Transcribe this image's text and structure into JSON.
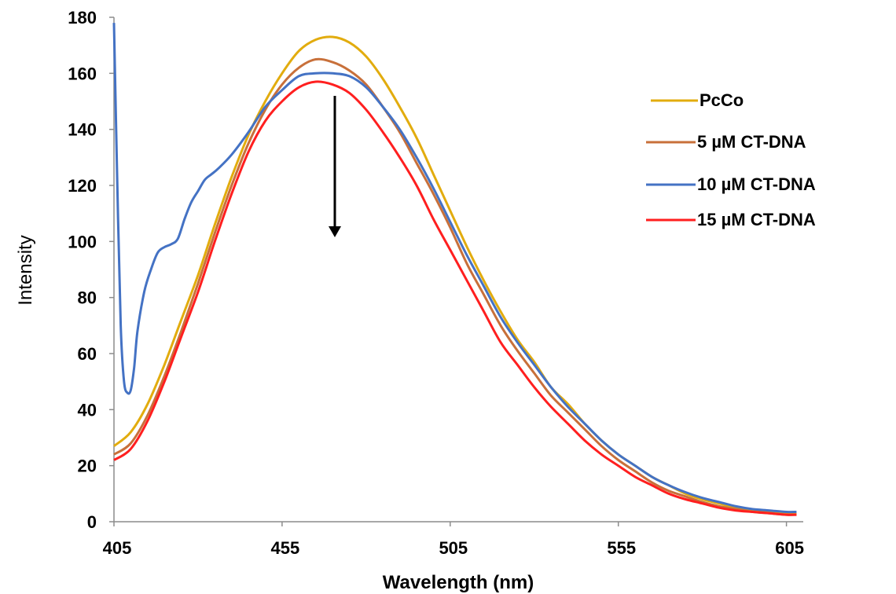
{
  "chart_data": {
    "type": "line",
    "xlabel": "Wavelength (nm)",
    "ylabel": "Intensity",
    "xlim": [
      405,
      610
    ],
    "ylim": [
      0,
      180
    ],
    "xticks": [
      405,
      455,
      505,
      555,
      605
    ],
    "yticks": [
      0,
      20,
      40,
      60,
      80,
      100,
      120,
      140,
      160,
      180
    ],
    "grid": false,
    "legend_position": "right",
    "annotation": "downward arrow at ~466 nm indicating decreasing intensity",
    "series": [
      {
        "name": "PcCo",
        "color": "#E2AC0E",
        "points": [
          [
            405,
            27
          ],
          [
            410,
            32
          ],
          [
            415,
            42
          ],
          [
            420,
            56
          ],
          [
            425,
            72
          ],
          [
            430,
            88
          ],
          [
            435,
            106
          ],
          [
            440,
            123
          ],
          [
            445,
            138
          ],
          [
            450,
            150
          ],
          [
            455,
            160
          ],
          [
            460,
            168
          ],
          [
            465,
            172
          ],
          [
            470,
            173
          ],
          [
            475,
            171
          ],
          [
            480,
            166
          ],
          [
            485,
            158
          ],
          [
            490,
            148
          ],
          [
            495,
            137
          ],
          [
            500,
            124
          ],
          [
            505,
            111
          ],
          [
            510,
            98
          ],
          [
            515,
            86
          ],
          [
            520,
            75
          ],
          [
            525,
            65
          ],
          [
            530,
            57
          ],
          [
            535,
            48
          ],
          [
            540,
            42
          ],
          [
            545,
            35
          ],
          [
            550,
            29
          ],
          [
            555,
            24
          ],
          [
            560,
            20
          ],
          [
            565,
            16
          ],
          [
            570,
            13
          ],
          [
            575,
            10
          ],
          [
            580,
            8
          ],
          [
            585,
            6.5
          ],
          [
            590,
            5
          ],
          [
            595,
            4
          ],
          [
            600,
            3.5
          ],
          [
            605,
            3
          ],
          [
            608,
            3
          ]
        ]
      },
      {
        "name": "5 µM CT-DNA",
        "color": "#C8703A",
        "points": [
          [
            405,
            24
          ],
          [
            410,
            28
          ],
          [
            415,
            38
          ],
          [
            420,
            52
          ],
          [
            425,
            68
          ],
          [
            430,
            85
          ],
          [
            435,
            103
          ],
          [
            440,
            120
          ],
          [
            445,
            135
          ],
          [
            450,
            147
          ],
          [
            455,
            156
          ],
          [
            460,
            162
          ],
          [
            465,
            165
          ],
          [
            470,
            164
          ],
          [
            475,
            161
          ],
          [
            480,
            156
          ],
          [
            485,
            148
          ],
          [
            490,
            139
          ],
          [
            495,
            128
          ],
          [
            500,
            117
          ],
          [
            505,
            105
          ],
          [
            510,
            92
          ],
          [
            515,
            81
          ],
          [
            520,
            70
          ],
          [
            525,
            61
          ],
          [
            530,
            53
          ],
          [
            535,
            45
          ],
          [
            540,
            39
          ],
          [
            545,
            33
          ],
          [
            550,
            27
          ],
          [
            555,
            22
          ],
          [
            560,
            18
          ],
          [
            565,
            14
          ],
          [
            570,
            11
          ],
          [
            575,
            9
          ],
          [
            580,
            7
          ],
          [
            585,
            5.5
          ],
          [
            590,
            4.5
          ],
          [
            595,
            3.5
          ],
          [
            600,
            3
          ],
          [
            605,
            2.5
          ],
          [
            608,
            2.5
          ]
        ]
      },
      {
        "name": "10 µM CT-DNA",
        "color": "#4472C4",
        "points": [
          [
            405,
            178
          ],
          [
            406,
            120
          ],
          [
            407,
            70
          ],
          [
            408,
            50
          ],
          [
            409,
            46
          ],
          [
            410,
            47
          ],
          [
            411,
            55
          ],
          [
            412,
            68
          ],
          [
            414,
            82
          ],
          [
            416,
            90
          ],
          [
            418,
            96
          ],
          [
            420,
            98
          ],
          [
            422,
            99
          ],
          [
            424,
            101
          ],
          [
            426,
            108
          ],
          [
            428,
            114
          ],
          [
            430,
            118
          ],
          [
            432,
            122
          ],
          [
            434,
            124
          ],
          [
            436,
            126
          ],
          [
            440,
            131
          ],
          [
            445,
            139
          ],
          [
            450,
            148
          ],
          [
            455,
            154
          ],
          [
            460,
            159
          ],
          [
            465,
            160
          ],
          [
            470,
            160
          ],
          [
            475,
            159
          ],
          [
            480,
            155
          ],
          [
            485,
            148
          ],
          [
            490,
            140
          ],
          [
            495,
            130
          ],
          [
            500,
            119
          ],
          [
            505,
            107
          ],
          [
            510,
            95
          ],
          [
            515,
            84
          ],
          [
            520,
            73
          ],
          [
            525,
            64
          ],
          [
            530,
            56
          ],
          [
            535,
            48
          ],
          [
            540,
            41
          ],
          [
            545,
            35
          ],
          [
            550,
            29
          ],
          [
            555,
            24
          ],
          [
            560,
            20
          ],
          [
            565,
            16
          ],
          [
            570,
            13
          ],
          [
            575,
            10.5
          ],
          [
            580,
            8.5
          ],
          [
            585,
            7
          ],
          [
            590,
            5.5
          ],
          [
            595,
            4.5
          ],
          [
            600,
            4
          ],
          [
            605,
            3.5
          ],
          [
            608,
            3.5
          ]
        ]
      },
      {
        "name": "15 µM CT-DNA",
        "color": "#FF1F1F",
        "points": [
          [
            405,
            22
          ],
          [
            410,
            26
          ],
          [
            415,
            36
          ],
          [
            420,
            50
          ],
          [
            425,
            66
          ],
          [
            430,
            82
          ],
          [
            435,
            100
          ],
          [
            440,
            117
          ],
          [
            445,
            132
          ],
          [
            450,
            143
          ],
          [
            455,
            150
          ],
          [
            460,
            155
          ],
          [
            465,
            157
          ],
          [
            470,
            156
          ],
          [
            475,
            153
          ],
          [
            480,
            147
          ],
          [
            485,
            139
          ],
          [
            490,
            130
          ],
          [
            495,
            120
          ],
          [
            500,
            108
          ],
          [
            505,
            97
          ],
          [
            510,
            86
          ],
          [
            515,
            75
          ],
          [
            520,
            64
          ],
          [
            525,
            56
          ],
          [
            530,
            48
          ],
          [
            535,
            41
          ],
          [
            540,
            35
          ],
          [
            545,
            29
          ],
          [
            550,
            24
          ],
          [
            555,
            20
          ],
          [
            560,
            16
          ],
          [
            565,
            13
          ],
          [
            570,
            10
          ],
          [
            575,
            8
          ],
          [
            580,
            6.5
          ],
          [
            585,
            5
          ],
          [
            590,
            4
          ],
          [
            595,
            3.5
          ],
          [
            600,
            3
          ],
          [
            605,
            2.5
          ],
          [
            608,
            2.5
          ]
        ]
      }
    ]
  }
}
